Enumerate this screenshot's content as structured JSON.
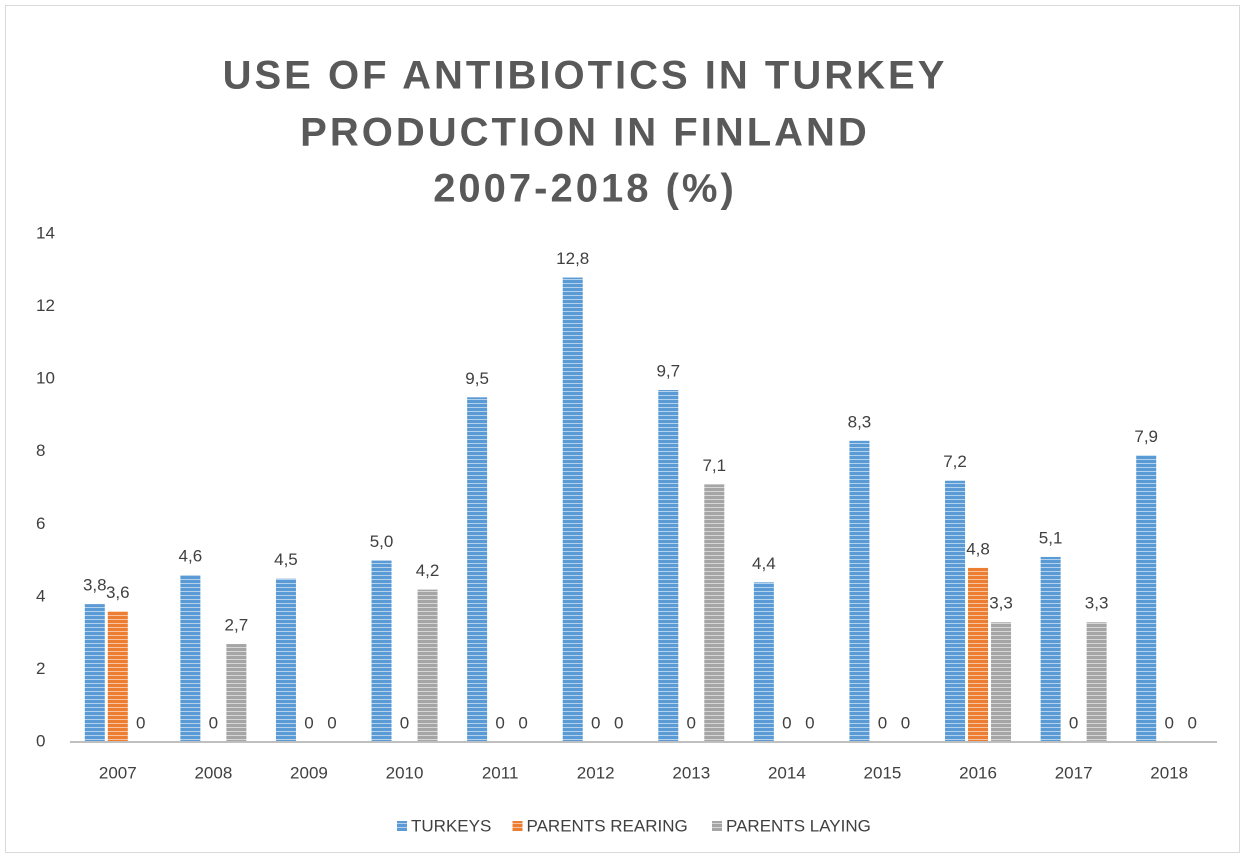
{
  "chart_data": {
    "type": "bar",
    "title": [
      "USE OF ANTIBIOTICS IN TURKEY",
      "PRODUCTION IN FINLAND",
      "2007-2018 (%)"
    ],
    "categories": [
      "2007",
      "2008",
      "2009",
      "2010",
      "2011",
      "2012",
      "2013",
      "2014",
      "2015",
      "2016",
      "2017",
      "2018"
    ],
    "series": [
      {
        "name": "TURKEYS",
        "color": "#5b9bd5",
        "values": [
          3.8,
          4.6,
          4.5,
          5.0,
          9.5,
          12.8,
          9.7,
          4.4,
          8.3,
          7.2,
          5.1,
          7.9
        ],
        "value_labels": [
          "3,8",
          "4,6",
          "4,5",
          "5,0",
          "9,5",
          "12,8",
          "9,7",
          "4,4",
          "8,3",
          "7,2",
          "5,1",
          "7,9"
        ]
      },
      {
        "name": "PARENTS REARING",
        "color": "#ed7d31",
        "values": [
          3.6,
          0,
          0,
          0,
          0,
          0,
          0,
          0,
          0,
          4.8,
          0,
          0
        ],
        "value_labels": [
          "3,6",
          "0",
          "0",
          "0",
          "0",
          "0",
          "0",
          "0",
          "0",
          "4,8",
          "0",
          "0"
        ]
      },
      {
        "name": "PARENTS LAYING",
        "color": "#a5a5a5",
        "values": [
          0,
          2.7,
          0,
          4.2,
          0,
          0,
          7.1,
          0,
          0,
          3.3,
          3.3,
          0
        ],
        "value_labels": [
          "0",
          "2,7",
          "0",
          "4,2",
          "0",
          "0",
          "7,1",
          "0",
          "0",
          "3,3",
          "3,3",
          "0"
        ]
      }
    ],
    "ylim": [
      0,
      14
    ],
    "yticks": [
      0,
      2,
      4,
      6,
      8,
      10,
      12,
      14
    ],
    "grid": false,
    "legend": "bottom",
    "pattern": "horizontal-stripes"
  }
}
